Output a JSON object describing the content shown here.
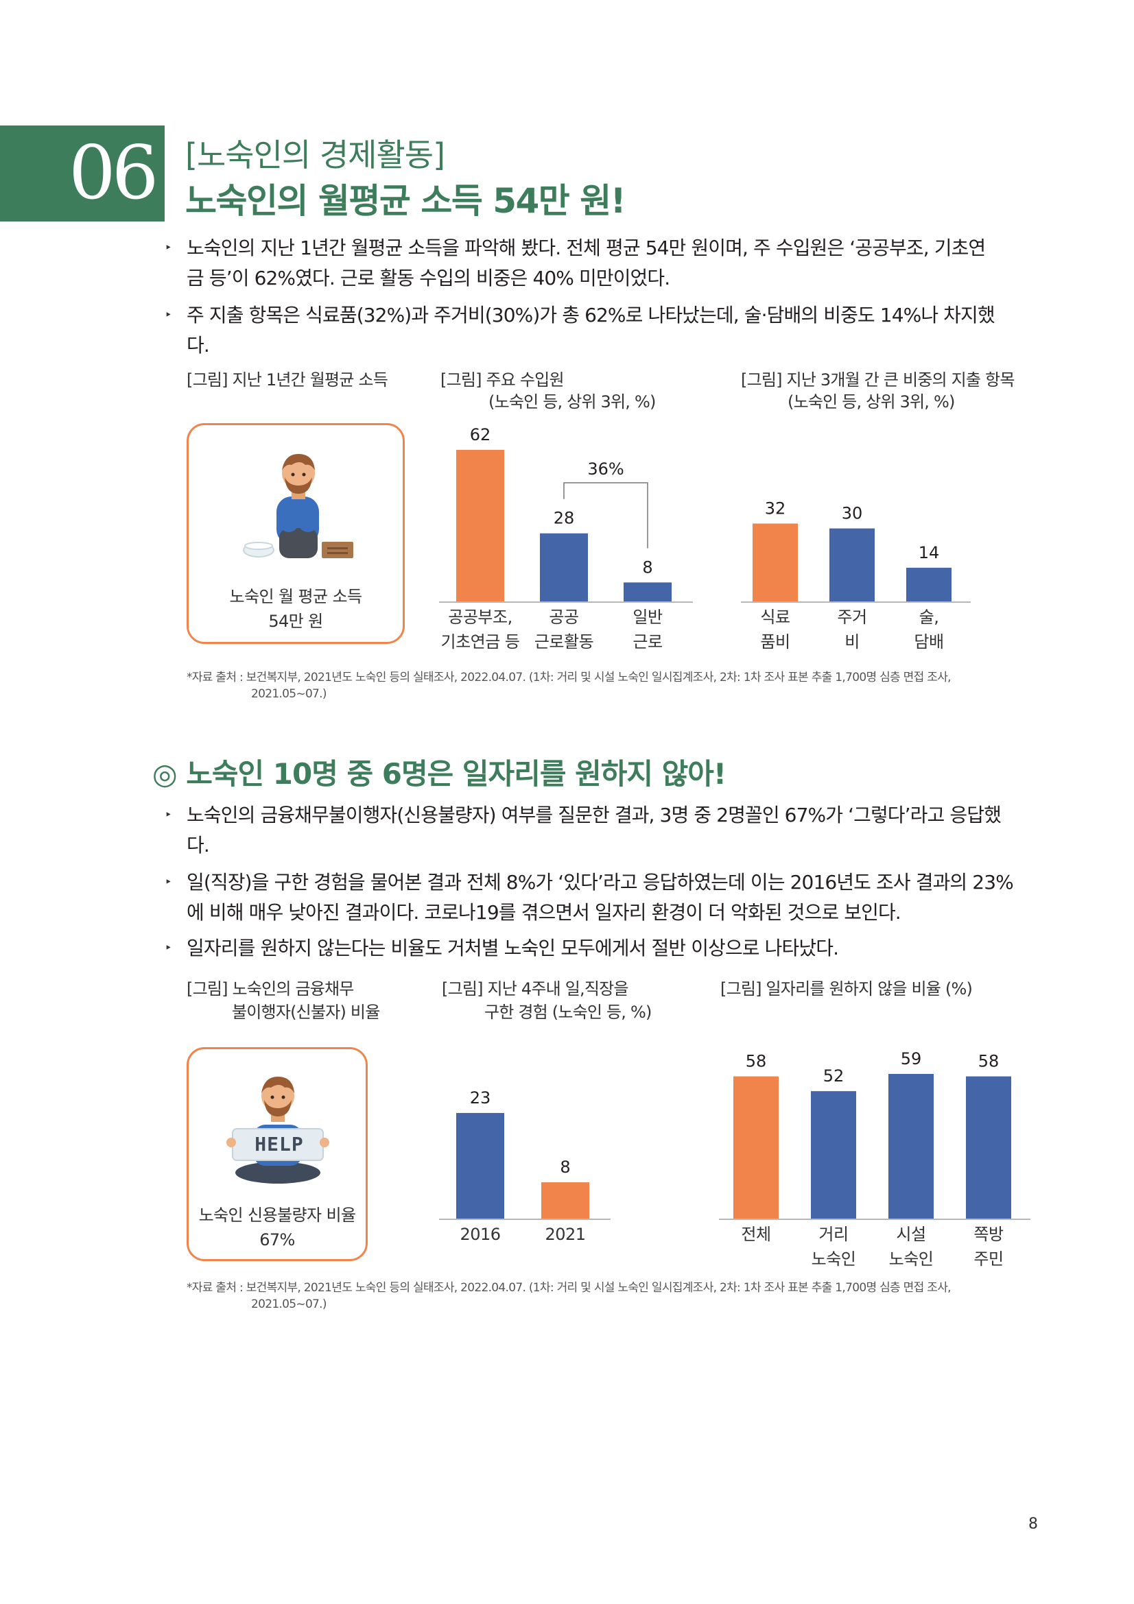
{
  "chapter": {
    "number": "06",
    "subtitle": "[노숙인의 경제활동]",
    "title": "노숙인의 월평균 소득 54만 원!"
  },
  "section1": {
    "bullets": [
      [
        "노숙인의 지난 1년간 월평균 소득을 파악해 봤다. 전체 평균 54만 원이며, 주 수입원은 ‘공공부조, 기초연",
        "금 등’이 62%였다. 근로 활동 수입의 비중은 40% 미만이었다."
      ],
      [
        "주 지출 항목은 식료품(32%)과 주거비(30%)가 총 62%로 나타났는데, 술·담배의 비중도 14%나 차지했",
        "다."
      ]
    ],
    "captions": {
      "income": "[그림] 지난 1년간 월평균 소득",
      "sources": [
        "[그림] 주요 수입원",
        "(노숙인 등, 상위 3위, %)"
      ],
      "expenses": [
        "[그림] 지난 3개월 간 큰 비중의 지출 항목",
        "(노숙인 등, 상위 3위, %)"
      ]
    },
    "income_card": [
      "노숙인 월 평균 소득",
      "54만 원"
    ],
    "bracket_label": "36%",
    "source_note": [
      "*자료 출처 : 보건복지부, 2021년도 노숙인 등의 실태조사, 2022.04.07. (1차: 거리 및 시설 노숙인 일시집계조사, 2차: 1차 조사 표본 추출 1,700명 심층 면접 조사,",
      "2021.05~07.)"
    ]
  },
  "section2": {
    "heading": "◎ 노숙인 10명 중 6명은 일자리를 원하지 않아!",
    "bullets": [
      [
        "노숙인의 금융채무불이행자(신용불량자) 여부를 질문한 결과, 3명 중 2명꼴인 67%가 ‘그렇다’라고 응답했",
        "다."
      ],
      [
        "일(직장)을 구한 경험을 물어본 결과 전체 8%가 ‘있다’라고 응답하였는데 이는 2016년도 조사 결과의 23%",
        "에 비해 매우 낮아진 결과이다. 코로나19를 겪으면서 일자리 환경이 더 악화된 것으로 보인다."
      ],
      [
        "일자리를 원하지 않는다는 비율도 거처별 노숙인 모두에게서 절반 이상으로 나타났다."
      ]
    ],
    "captions": {
      "credit": [
        "[그림] 노숙인의 금융채무",
        "불이행자(신불자) 비율"
      ],
      "jobs": [
        "[그림] 지난 4주내 일,직장을",
        "구한 경험 (노숙인 등, %)"
      ],
      "unwilling": "[그림] 일자리를 원하지 않을 비율 (%)"
    },
    "credit_card": [
      "노숙인 신용불량자 비율",
      "67%"
    ],
    "help_sign": "HELP",
    "source_note": [
      "*자료 출처 : 보건복지부, 2021년도 노숙인 등의 실태조사, 2022.04.07. (1차: 거리 및 시설 노숙인 일시집계조사, 2차: 1차 조사 표본 추출 1,700명 심층 면접 조사,",
      "2021.05~07.)"
    ]
  },
  "page_number": "8",
  "colors": {
    "brand_green": "#3d7d5c",
    "orange": "#f0844a",
    "blue": "#4466a8"
  },
  "chart_data": [
    {
      "type": "bar",
      "title": "[그림] 주요 수입원 (노숙인 등, 상위 3위, %)",
      "categories": [
        [
          "공공부조,",
          "기초연금 등"
        ],
        [
          "공공",
          "근로활동"
        ],
        [
          "일반",
          "근로"
        ]
      ],
      "values": [
        62,
        28,
        8
      ],
      "colors": [
        "#f0844a",
        "#4466a8",
        "#4466a8"
      ],
      "ylim": [
        0,
        62
      ],
      "annotation": "36%"
    },
    {
      "type": "bar",
      "title": "[그림] 지난 3개월 간 큰 비중의 지출 항목 (노숙인 등, 상위 3위, %)",
      "categories": [
        [
          "식료",
          "품비"
        ],
        [
          "주거",
          "비"
        ],
        [
          "술,",
          "담배"
        ]
      ],
      "values": [
        32,
        30,
        14
      ],
      "colors": [
        "#f0844a",
        "#4466a8",
        "#4466a8"
      ],
      "ylim": [
        0,
        62
      ]
    },
    {
      "type": "bar",
      "title": "[그림] 지난 4주내 일,직장을 구한 경험 (노숙인 등, %)",
      "categories": [
        [
          "2016"
        ],
        [
          "2021"
        ]
      ],
      "values": [
        23,
        8
      ],
      "colors": [
        "#4466a8",
        "#f0844a"
      ],
      "ylim": [
        0,
        27
      ]
    },
    {
      "type": "bar",
      "title": "[그림] 일자리를 원하지 않을 비율 (%)",
      "categories": [
        [
          "전체"
        ],
        [
          "거리",
          "노숙인"
        ],
        [
          "시설",
          "노숙인"
        ],
        [
          "쪽방",
          "주민"
        ]
      ],
      "values": [
        58,
        52,
        59,
        58
      ],
      "colors": [
        "#f0844a",
        "#4466a8",
        "#4466a8",
        "#4466a8"
      ],
      "ylim": [
        0,
        59
      ]
    }
  ]
}
